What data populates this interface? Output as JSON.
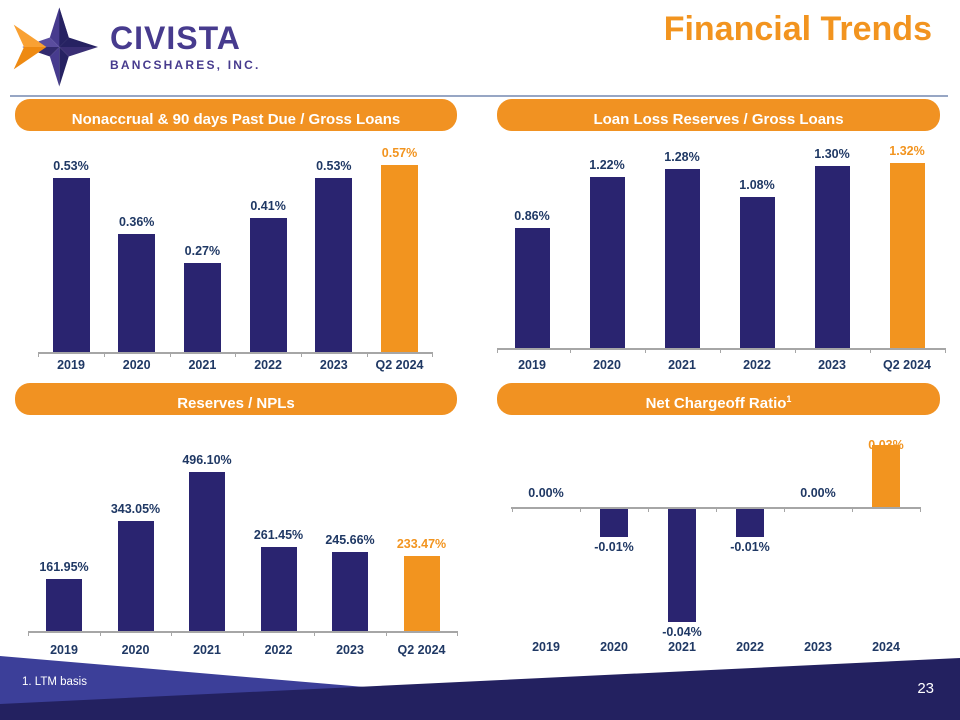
{
  "slide": {
    "logo": {
      "brand": "CIVISTA",
      "sub": "BANCSHARES, INC."
    },
    "title": "Financial Trends",
    "footnote": "1. LTM basis",
    "page_number": "23"
  },
  "colors": {
    "bar": "#2A2470",
    "accent": "#F2941F",
    "label": "#1F3864",
    "axis": "#A6A6A6",
    "header_pill": "#F19222",
    "footer_navy": "#232160",
    "footer_blue": "#3C3F99",
    "brand_purple": "#473B8E"
  },
  "chart_data": [
    {
      "type": "bar",
      "title": "Nonaccrual & 90 days Past Due / Gross Loans",
      "title_sup": "",
      "categories": [
        "2019",
        "2020",
        "2021",
        "2022",
        "2023",
        "Q2 2024"
      ],
      "values": [
        0.53,
        0.36,
        0.27,
        0.41,
        0.53,
        0.57
      ],
      "labels": [
        "0.53%",
        "0.36%",
        "0.27%",
        "0.41%",
        "0.53%",
        "0.57%"
      ],
      "unit": "%",
      "highlight_index": 5,
      "ylim": [
        0,
        0.65
      ],
      "grid": false,
      "legend": false
    },
    {
      "type": "bar",
      "title": "Loan Loss Reserves / Gross Loans",
      "title_sup": "",
      "categories": [
        "2019",
        "2020",
        "2021",
        "2022",
        "2023",
        "Q2 2024"
      ],
      "values": [
        0.86,
        1.22,
        1.28,
        1.08,
        1.3,
        1.32
      ],
      "labels": [
        "0.86%",
        "1.22%",
        "1.28%",
        "1.08%",
        "1.30%",
        "1.32%"
      ],
      "unit": "%",
      "highlight_index": 5,
      "ylim": [
        0,
        1.5
      ],
      "grid": false,
      "legend": false
    },
    {
      "type": "bar",
      "title": "Reserves / NPLs",
      "title_sup": "",
      "categories": [
        "2019",
        "2020",
        "2021",
        "2022",
        "2023",
        "Q2 2024"
      ],
      "values": [
        161.95,
        343.05,
        496.1,
        261.45,
        245.66,
        233.47
      ],
      "labels": [
        "161.95%",
        "343.05%",
        "496.10%",
        "261.45%",
        "245.66%",
        "233.47%"
      ],
      "unit": "%",
      "highlight_index": 5,
      "ylim": [
        0,
        640
      ],
      "grid": false,
      "legend": false
    },
    {
      "type": "bar",
      "title": "Net Chargeoff Ratio",
      "title_sup": "1",
      "categories": [
        "2019",
        "2020",
        "2021",
        "2022",
        "2023",
        "2024"
      ],
      "values": [
        0.0,
        -0.01,
        -0.04,
        -0.01,
        0.0,
        0.03
      ],
      "labels": [
        "0.00%",
        "-0.01%",
        "-0.04%",
        "-0.01%",
        "0.00%",
        "0.03%"
      ],
      "unit": "%",
      "highlight_index": 5,
      "ylim": [
        -0.05,
        0.022
      ],
      "grid": false,
      "legend": false
    }
  ]
}
